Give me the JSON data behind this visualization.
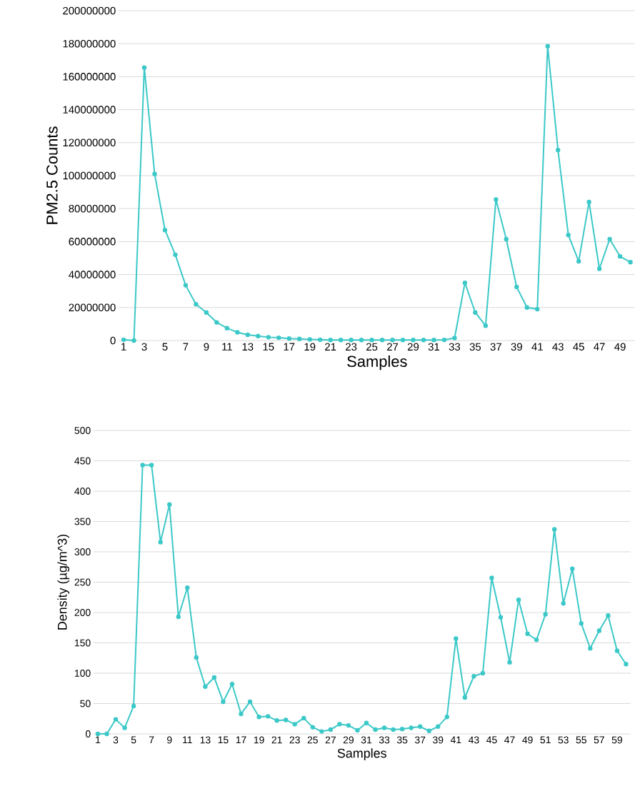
{
  "chart_data": [
    {
      "type": "line",
      "xlabel": "Samples",
      "ylabel": "PM2.5 Counts",
      "color": "#3cc8c8",
      "marker": "circle",
      "grid": "y",
      "categories": [
        "1",
        null,
        "3",
        null,
        "5",
        null,
        "7",
        null,
        "9",
        null,
        "11",
        null,
        "13",
        null,
        "15",
        null,
        "17",
        null,
        "19",
        null,
        "21",
        null,
        "23",
        null,
        "25",
        null,
        "27",
        null,
        "29",
        null,
        "31",
        null,
        "33",
        null,
        "35",
        null,
        "37",
        null,
        "39",
        null,
        "41",
        null,
        "43",
        null,
        "45",
        null,
        "47",
        null,
        "49",
        null
      ],
      "values": [
        500000,
        0,
        165500000,
        101000000,
        67000000,
        52000000,
        33500000,
        22000000,
        17000000,
        11000000,
        7500000,
        5000000,
        3500000,
        2700000,
        2000000,
        1700000,
        1200000,
        1000000,
        700000,
        500000,
        300000,
        300000,
        300000,
        300000,
        300000,
        300000,
        300000,
        300000,
        300000,
        300000,
        300000,
        400000,
        1500000,
        35000000,
        17000000,
        9000000,
        85500000,
        61500000,
        32500000,
        20000000,
        19000000,
        178500000,
        115500000,
        64000000,
        48000000,
        84000000,
        43500000,
        61500000,
        51000000,
        47500000
      ],
      "ylim": [
        0,
        200000000
      ],
      "yticks": [
        0,
        20000000,
        40000000,
        60000000,
        80000000,
        100000000,
        120000000,
        140000000,
        160000000,
        180000000,
        200000000
      ]
    },
    {
      "type": "line",
      "xlabel": "Samples",
      "ylabel": "Density (µg/m^3)",
      "color": "#3cc8c8",
      "marker": "circle",
      "grid": "y",
      "categories": [
        "1",
        null,
        "3",
        null,
        "5",
        null,
        "7",
        null,
        "9",
        null,
        "11",
        null,
        "13",
        null,
        "15",
        null,
        "17",
        null,
        "19",
        null,
        "21",
        null,
        "23",
        null,
        "25",
        null,
        "27",
        null,
        "29",
        null,
        "31",
        null,
        "33",
        null,
        "35",
        null,
        "37",
        null,
        "39",
        null,
        "41",
        null,
        "43",
        null,
        "45",
        null,
        "47",
        null,
        "49",
        null,
        "51",
        null,
        "53",
        null,
        "55",
        null,
        "57",
        null,
        "59",
        null
      ],
      "values": [
        0,
        0,
        24,
        10,
        46,
        443,
        443,
        316,
        378,
        193,
        241,
        126,
        78,
        93,
        53,
        82,
        33,
        53,
        28,
        29,
        22,
        23,
        16,
        26,
        11,
        4,
        7,
        16,
        14,
        6,
        18,
        7,
        10,
        7,
        8,
        10,
        12,
        5,
        12,
        28,
        157,
        60,
        95,
        100,
        257,
        192,
        118,
        221,
        165,
        155,
        197,
        337,
        215,
        272,
        182,
        141,
        170,
        195,
        137,
        115
      ],
      "ylim": [
        0,
        500
      ],
      "yticks": [
        0,
        50,
        100,
        150,
        200,
        250,
        300,
        350,
        400,
        450,
        500
      ]
    }
  ]
}
